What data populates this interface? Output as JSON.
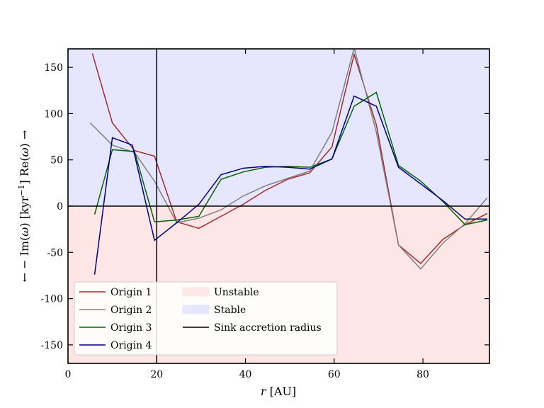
{
  "chart_data": {
    "type": "line",
    "xlabel": "r [AU]",
    "ylabel": "← − Im(ω) [kyr⁻¹] Re(ω) →",
    "xlim": [
      0,
      95
    ],
    "ylim": [
      -170,
      170
    ],
    "xticks": [
      0,
      20,
      40,
      60,
      80
    ],
    "yticks": [
      -150,
      -100,
      -50,
      0,
      50,
      100,
      150
    ],
    "grid": false,
    "legend": "lower-left",
    "regions": [
      {
        "name": "Unstable",
        "y_range": [
          -170,
          0
        ],
        "color": "#ffe6e6"
      },
      {
        "name": "Stable",
        "y_range": [
          0,
          170
        ],
        "color": "#e6e6ff"
      }
    ],
    "vline": {
      "name": "Sink accretion radius",
      "x": 20,
      "color": "#000000"
    },
    "hline": {
      "y": 0,
      "color": "#000000"
    },
    "series": [
      {
        "name": "Origin 1",
        "color": "#a52a2a",
        "x": [
          5.5,
          10,
          15,
          19.5,
          24.5,
          29.5,
          34.5,
          39.5,
          44.5,
          49.5,
          54.5,
          59.5,
          64.5,
          69.5,
          74.5,
          79.5,
          84.5,
          89.5,
          94.5
        ],
        "y": [
          165,
          90,
          60,
          54,
          -17,
          -24,
          -11,
          2,
          17,
          29,
          36,
          64,
          164,
          88,
          -42,
          -62,
          -36,
          -20,
          -8
        ]
      },
      {
        "name": "Origin 2",
        "color": "#808080",
        "x": [
          5,
          10,
          15,
          19.5,
          24.5,
          29.5,
          34.5,
          39.5,
          44.5,
          49.5,
          54.5,
          59.5,
          64.5,
          69.5,
          74.5,
          79.5,
          84.5,
          89.5,
          94.5
        ],
        "y": [
          90,
          66,
          58,
          27,
          -18,
          -13,
          -4,
          11,
          22,
          30,
          38,
          80,
          171,
          80,
          -42,
          -68,
          -40,
          -19,
          9
        ]
      },
      {
        "name": "Origin 3",
        "color": "#006400",
        "x": [
          6,
          10,
          15,
          19.5,
          24.5,
          29.5,
          34.5,
          39.5,
          44.5,
          49.5,
          54.5,
          59.5,
          64.5,
          69.5,
          74.5,
          79.5,
          84.5,
          89.5,
          94.5
        ],
        "y": [
          -9,
          61,
          59,
          -17,
          -15,
          -11,
          29,
          37,
          42,
          43,
          42,
          51,
          108,
          123,
          44,
          27,
          5,
          -20,
          -15
        ]
      },
      {
        "name": "Origin 4",
        "color": "#00007f",
        "x": [
          6,
          10,
          14.5,
          19.5,
          24.5,
          29.5,
          34.5,
          39.5,
          44.5,
          49.5,
          54.5,
          59.5,
          64.5,
          69.5,
          74.5,
          79.5,
          84.5,
          89.5,
          94.5
        ],
        "y": [
          -74,
          74,
          66,
          -37,
          -18,
          2,
          34,
          41,
          43,
          42,
          40,
          51,
          119,
          108,
          42,
          24,
          6,
          -14,
          -14
        ]
      }
    ]
  }
}
